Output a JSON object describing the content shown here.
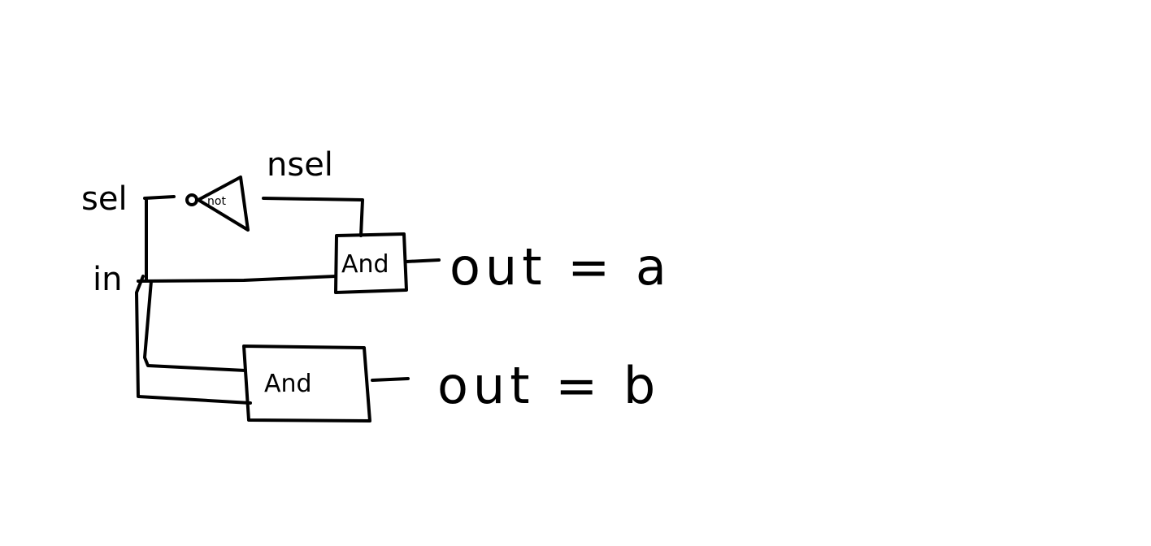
{
  "labels": {
    "sel": "sel",
    "nsel": "nsel",
    "in": "in"
  },
  "gates": {
    "not": "not",
    "and_top": "And",
    "and_bottom": "And"
  },
  "outputs": {
    "a": "out = a",
    "b": "out = b"
  }
}
